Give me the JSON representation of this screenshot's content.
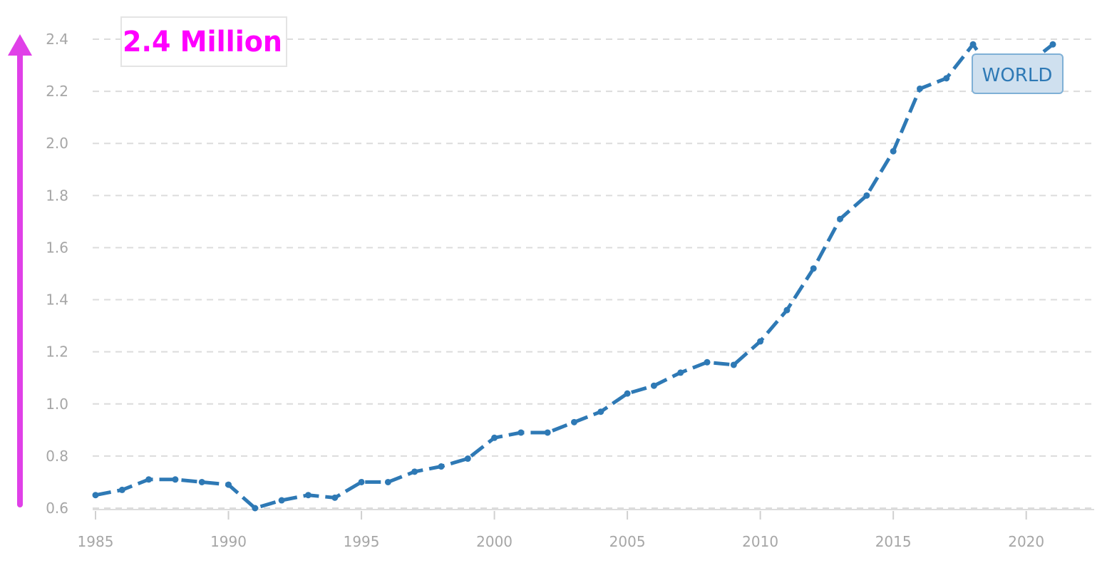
{
  "chart_data": {
    "type": "line",
    "title": "",
    "xlabel": "",
    "ylabel": "",
    "ylim": [
      0.6,
      2.4
    ],
    "xlim": [
      1985,
      2021
    ],
    "yticks": [
      "0.6",
      "0.8",
      "1.0",
      "1.2",
      "1.4",
      "1.6",
      "1.8",
      "2.0",
      "2.2",
      "2.4"
    ],
    "xticks": [
      "1985",
      "1990",
      "1995",
      "2000",
      "2005",
      "2010",
      "2015",
      "2020"
    ],
    "grid": true,
    "series": [
      {
        "name": "WORLD",
        "color": "#2e79b5",
        "x": [
          1985,
          1986,
          1987,
          1988,
          1989,
          1990,
          1991,
          1992,
          1993,
          1994,
          1995,
          1996,
          1997,
          1998,
          1999,
          2000,
          2001,
          2002,
          2003,
          2004,
          2005,
          2006,
          2007,
          2008,
          2009,
          2010,
          2011,
          2012,
          2013,
          2014,
          2015,
          2016,
          2017,
          2018,
          2019,
          2020,
          2021
        ],
        "values": [
          0.65,
          0.67,
          0.71,
          0.71,
          0.7,
          0.69,
          0.6,
          0.63,
          0.65,
          0.64,
          0.7,
          0.7,
          0.74,
          0.76,
          0.79,
          0.87,
          0.89,
          0.89,
          0.93,
          0.97,
          1.04,
          1.07,
          1.12,
          1.16,
          1.15,
          1.24,
          1.36,
          1.52,
          1.71,
          1.8,
          1.97,
          2.21,
          2.25,
          2.38,
          2.23,
          2.3,
          2.38
        ]
      }
    ],
    "legend": {
      "label": "WORLD",
      "placement": "top-right"
    },
    "annotation": {
      "text": "2.4 Million",
      "color": "#ff00ff"
    },
    "arrow_color": "#e040e8"
  }
}
